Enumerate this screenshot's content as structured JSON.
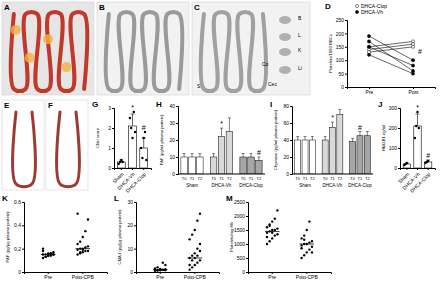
{
  "chart_data": [
    {
      "type": "line",
      "title": "D",
      "ylabel": "Platelets/1000 RBCs",
      "categories": [
        "Pre",
        "Post"
      ],
      "ylim": [
        0,
        250
      ],
      "yticks": [
        0,
        50,
        100,
        150,
        200,
        250
      ],
      "legend": "top",
      "series": [
        {
          "name": "DHCA-Clop",
          "color": "#ffffff",
          "marker": "circle",
          "values": [
            [
              150,
              170
            ],
            [
              140,
              160
            ],
            [
              130,
              150
            ]
          ]
        },
        {
          "name": "DHCA-Vh",
          "color": "#000000",
          "marker": "circle",
          "values": [
            [
              190,
              100
            ],
            [
              170,
              60
            ],
            [
              150,
              80
            ],
            [
              120,
              50
            ]
          ]
        }
      ],
      "annotations": [
        {
          "text": "#",
          "category": "Post"
        }
      ]
    },
    {
      "type": "bar",
      "title": "G",
      "ylabel": "Chiu score",
      "categories": [
        "Sham",
        "DHCA-Vh",
        "DHCA-Clop"
      ],
      "values": [
        0.3,
        2.1,
        1.0
      ],
      "errors": [
        0.1,
        0.6,
        0.5
      ],
      "points": [
        [
          0.2,
          0.3,
          0.4,
          0.3
        ],
        [
          2.5,
          2.0,
          1.5,
          2.8,
          1.8
        ],
        [
          1.0,
          0.5,
          1.5,
          1.8,
          0.4
        ]
      ],
      "color": "#ffffff",
      "ylim": [
        0,
        3
      ],
      "yticks": [
        0,
        1,
        2,
        3
      ],
      "annotations": [
        {
          "text": "*",
          "category": "DHCA-Vh"
        },
        {
          "text": "#",
          "category": "DHCA-Clop"
        }
      ]
    },
    {
      "type": "grouped_bar",
      "title": "H",
      "ylabel": "PAF (pg/ml plasma protein)",
      "categories": [
        "T0",
        "T1",
        "T2"
      ],
      "ylim": [
        0,
        40
      ],
      "yticks": [
        0,
        10,
        20,
        30,
        40
      ],
      "series": [
        {
          "name": "Sham",
          "color": "#ffffff",
          "values": [
            10,
            10,
            10
          ],
          "errors": [
            2,
            2,
            2
          ]
        },
        {
          "name": "DHCA-Vh",
          "color": "#d9d9d9",
          "values": [
            10,
            22,
            25
          ],
          "errors": [
            2,
            5,
            8
          ]
        },
        {
          "name": "DHCA-Clop",
          "color": "#a6a6a6",
          "values": [
            10,
            10,
            8
          ],
          "errors": [
            2,
            2,
            2
          ]
        }
      ],
      "annotations": [
        {
          "text": "*",
          "series": "DHCA-Vh",
          "category": "T1"
        },
        {
          "text": "#",
          "series": "DHCA-Clop",
          "category": "T2"
        }
      ]
    },
    {
      "type": "grouped_bar",
      "title": "I",
      "ylabel": "Chymase (pg/ml plasma protein)",
      "categories": [
        "T0",
        "T1",
        "T2"
      ],
      "ylim": [
        0,
        80
      ],
      "yticks": [
        0,
        20,
        40,
        60,
        80
      ],
      "series": [
        {
          "name": "Sham",
          "color": "#ffffff",
          "values": [
            40,
            40,
            40
          ],
          "errors": [
            4,
            4,
            4
          ]
        },
        {
          "name": "DHCA-Vh",
          "color": "#d9d9d9",
          "values": [
            40,
            55,
            70
          ],
          "errors": [
            4,
            6,
            6
          ]
        },
        {
          "name": "DHCA-Clop",
          "color": "#a6a6a6",
          "values": [
            38,
            45,
            45
          ],
          "errors": [
            4,
            5,
            5
          ]
        }
      ],
      "annotations": [
        {
          "text": "*",
          "series": "DHCA-Vh",
          "category": "T1"
        },
        {
          "text": "#",
          "series": "DHCA-Clop",
          "category": "T1"
        }
      ]
    },
    {
      "type": "bar",
      "title": "J",
      "ylabel": "HMGB1 ng/ml",
      "categories": [
        "Sham",
        "DHCA-Vh",
        "DHCA-Clop"
      ],
      "values": [
        20,
        210,
        30
      ],
      "errors": [
        5,
        60,
        10
      ],
      "points": [
        [
          15,
          20,
          25
        ],
        [
          150,
          210,
          280,
          200
        ],
        [
          25,
          30,
          35
        ]
      ],
      "color": "#ffffff",
      "ylim": [
        0,
        300
      ],
      "yticks": [
        0,
        100,
        200,
        300
      ],
      "annotations": [
        {
          "text": "*",
          "category": "DHCA-Vh"
        },
        {
          "text": "#",
          "category": "DHCA-Clop"
        }
      ]
    },
    {
      "type": "dot",
      "title": "K",
      "ylabel": "PAF (pg/µg plasma protein)",
      "categories": [
        "Pre",
        "Post-CPB"
      ],
      "values": [
        0.15,
        0.2
      ],
      "points": [
        [
          0.12,
          0.13,
          0.14,
          0.14,
          0.15,
          0.15,
          0.15,
          0.16,
          0.16,
          0.17,
          0.18,
          0.13,
          0.14,
          0.16,
          0.15,
          0.2
        ],
        [
          0.15,
          0.16,
          0.17,
          0.18,
          0.18,
          0.19,
          0.2,
          0.2,
          0.21,
          0.22,
          0.24,
          0.26,
          0.3,
          0.35,
          0.45,
          0.5,
          0.17,
          0.19
        ]
      ],
      "color": "#000000",
      "ylim": [
        0,
        0.6
      ],
      "yticks": [
        0,
        0.2,
        0.4,
        0.6
      ]
    },
    {
      "type": "dot",
      "title": "L",
      "ylabel": "CMA1 (pg/µg plasma protein)",
      "categories": [
        "Pre",
        "Post-CPB"
      ],
      "values": [
        1,
        6
      ],
      "points": [
        [
          0.5,
          0.8,
          1,
          1,
          1.2,
          1.5,
          2,
          0.7,
          0.9,
          3,
          1.1,
          0.6,
          1.3,
          4,
          0.8
        ],
        [
          1,
          2,
          3,
          4,
          5,
          6,
          7,
          8,
          10,
          12,
          14,
          16,
          18,
          22,
          25,
          3,
          5,
          6,
          7,
          9
        ]
      ],
      "color": "#000000",
      "ylim": [
        0,
        30
      ],
      "yticks": [
        0,
        10,
        20,
        30
      ]
    },
    {
      "type": "dot",
      "title": "M",
      "ylabel": "Platelets/mg Hb",
      "categories": [
        "Pre",
        "Post-CPB"
      ],
      "values": [
        1450,
        1000
      ],
      "points": [
        [
          1000,
          1100,
          1200,
          1300,
          1350,
          1400,
          1450,
          1500,
          1500,
          1550,
          1600,
          1700,
          1800,
          1900,
          2200,
          1250,
          1650,
          1400
        ],
        [
          500,
          600,
          700,
          800,
          900,
          950,
          1000,
          1000,
          1050,
          1100,
          1200,
          1300,
          1500,
          1800,
          700,
          850,
          1150
        ]
      ],
      "color": "#000000",
      "ylim": [
        0,
        2500
      ],
      "yticks": [
        0,
        500,
        1000,
        1500,
        2000,
        2500
      ]
    }
  ],
  "images": [
    {
      "label": "A"
    },
    {
      "label": "B"
    },
    {
      "label": "C",
      "annotations": [
        "S",
        "B",
        "L",
        "K",
        "Li",
        "Co",
        "Cec"
      ]
    },
    {
      "label": "E"
    },
    {
      "label": "F"
    }
  ]
}
